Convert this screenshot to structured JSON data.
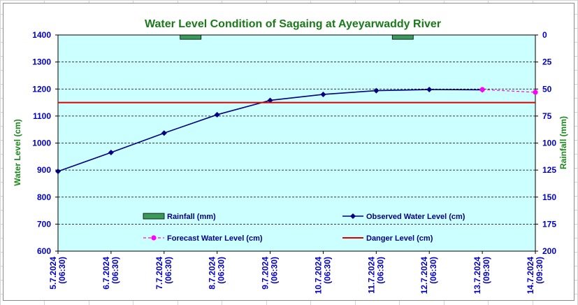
{
  "chart_data": {
    "type": "line",
    "title": "Water Level Condition of Sagaing at Ayeyarwaddy River",
    "ylabel": "Water Level (cm)",
    "y2label": "Rainfall (mm)",
    "ylim": [
      600,
      1400
    ],
    "yticks": [
      600,
      700,
      800,
      900,
      1000,
      1100,
      1200,
      1300,
      1400
    ],
    "y2lim": [
      200,
      0
    ],
    "y2ticks": [
      0,
      25,
      50,
      75,
      100,
      125,
      150,
      175,
      200
    ],
    "categories": [
      [
        "5.7.2024",
        "(06:30)"
      ],
      [
        "6.7.2024",
        "(06:30)"
      ],
      [
        "7.7.2024",
        "(06:30)"
      ],
      [
        "8.7.2024",
        "(06:30)"
      ],
      [
        "9.7.2024",
        "(06:30)"
      ],
      [
        "10.7.2024",
        "(06:30)"
      ],
      [
        "11.7.2024",
        "(06:30)"
      ],
      [
        "12.7.2024",
        "(06:30)"
      ],
      [
        "13.7.2024",
        "(09:30)"
      ],
      [
        "14.7.2024",
        "(09:30)"
      ]
    ],
    "series": [
      {
        "name": "Rainfall (mm)",
        "kind": "bar",
        "axis": "right",
        "color": "#3a9a5a",
        "values": [
          null,
          null,
          4,
          null,
          null,
          null,
          4,
          null,
          null,
          null
        ]
      },
      {
        "name": "Observed Water Level (cm)",
        "kind": "line",
        "color": "#000080",
        "values": [
          895,
          965,
          1037,
          1105,
          1158,
          1180,
          1194,
          1198,
          1197,
          null
        ]
      },
      {
        "name": "Forecast Water Level (cm)",
        "kind": "line-dashed",
        "color": "#ff00ff",
        "values": [
          null,
          null,
          null,
          null,
          null,
          null,
          null,
          null,
          1198,
          1188
        ]
      },
      {
        "name": "Danger Level (cm)",
        "kind": "hline",
        "color": "#dd0000",
        "value": 1150
      }
    ],
    "grid": true,
    "plot_background": "#ccffff",
    "legend": "inside-bottom"
  }
}
